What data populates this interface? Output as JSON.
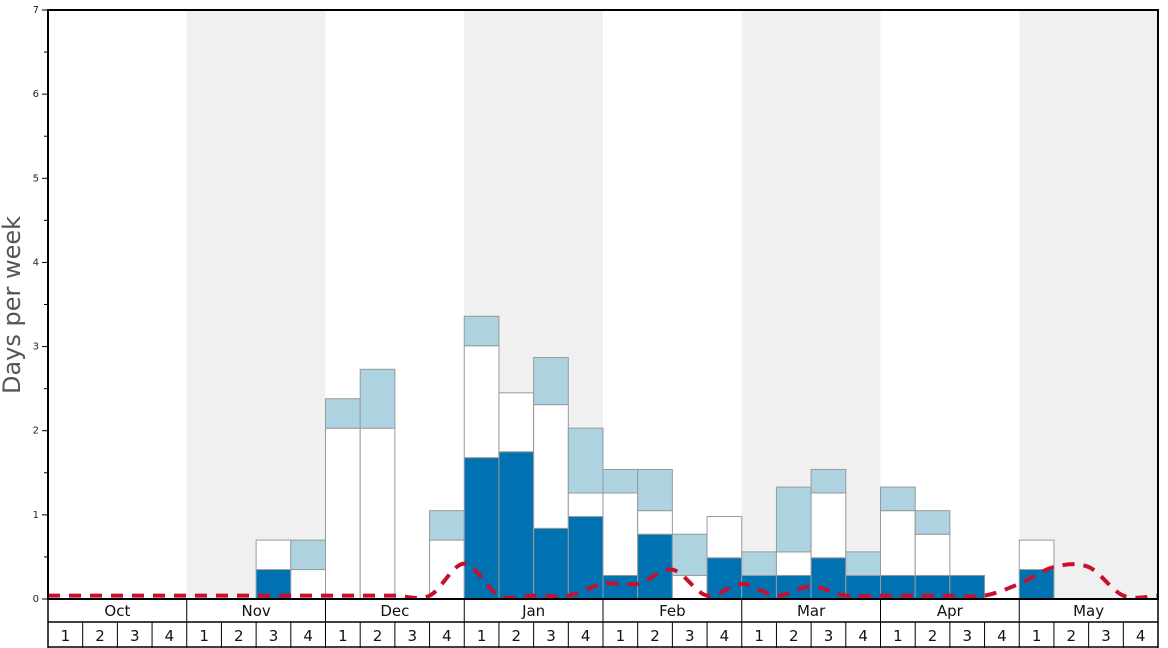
{
  "chart_data": {
    "type": "bar",
    "stacked": true,
    "ylabel": "Days per week",
    "ylim": [
      0,
      7
    ],
    "yticks": [
      0,
      1,
      2,
      3,
      4,
      5,
      6,
      7
    ],
    "months": [
      "Oct",
      "Nov",
      "Dec",
      "Jan",
      "Feb",
      "Mar",
      "Apr",
      "May"
    ],
    "week_labels": [
      "1",
      "2",
      "3",
      "4"
    ],
    "colors": {
      "bottom": "#0072B2",
      "middle": "#ffffff",
      "top": "#ADD3E0",
      "line": "#C8102E",
      "shade": "#F0F0F0"
    },
    "series": [
      {
        "key": "bottom",
        "values": [
          0,
          0,
          0,
          0,
          0,
          0,
          0.35,
          0,
          0,
          0,
          0,
          0,
          1.68,
          1.75,
          0.84,
          0.98,
          0.28,
          0.77,
          0,
          0.49,
          0.28,
          0.28,
          0.49,
          0.28,
          0.28,
          0.28,
          0.28,
          0,
          0.35,
          0,
          0,
          0
        ]
      },
      {
        "key": "middle",
        "values": [
          0,
          0,
          0,
          0,
          0,
          0,
          0.35,
          0.35,
          2.03,
          2.03,
          0,
          0.7,
          1.33,
          0.7,
          1.47,
          0.28,
          0.98,
          0.28,
          0.28,
          0.49,
          0,
          0.28,
          0.77,
          0,
          0.77,
          0.49,
          0,
          0,
          0.35,
          0,
          0,
          0
        ]
      },
      {
        "key": "top",
        "values": [
          0,
          0,
          0,
          0,
          0,
          0,
          0,
          0.35,
          0.35,
          0.7,
          0,
          0.35,
          0.35,
          0,
          0.56,
          0.77,
          0.28,
          0.49,
          0.49,
          0,
          0.28,
          0.77,
          0.28,
          0.28,
          0.28,
          0.28,
          0,
          0,
          0,
          0,
          0,
          0
        ]
      }
    ],
    "average_line": [
      0.04,
      0.04,
      0.04,
      0.04,
      0.04,
      0.04,
      0.04,
      0.04,
      0.04,
      0.04,
      0.04,
      0.04,
      0.42,
      0.04,
      0.04,
      0.04,
      0.18,
      0.18,
      0.35,
      0.04,
      0.18,
      0.04,
      0.15,
      0.04,
      0.04,
      0.04,
      0.04,
      0.04,
      0.18,
      0.38,
      0.38,
      0.04,
      0.04
    ]
  }
}
